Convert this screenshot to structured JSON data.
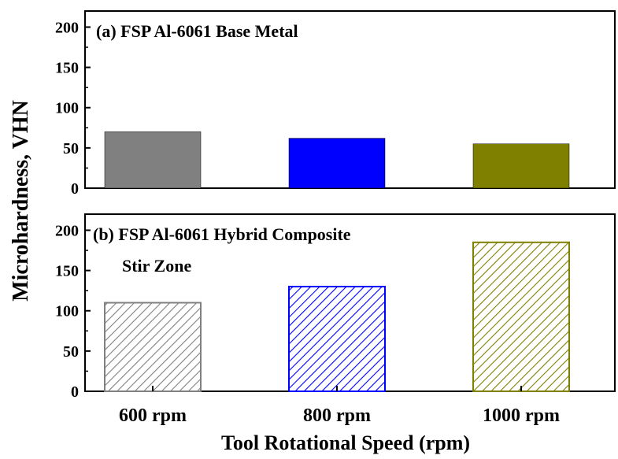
{
  "ylabel": "Microhardness, VHN",
  "xlabel": "Tool Rotational Speed (rpm)",
  "chart_data": [
    {
      "type": "bar",
      "title": "(a) FSP Al-6061 Base Metal",
      "subtitle": "",
      "categories": [
        "600 rpm",
        "800 rpm",
        "1000 rpm"
      ],
      "values": [
        70,
        62,
        55
      ],
      "colors": [
        "#808080",
        "#0000ff",
        "#808000"
      ],
      "fill": "solid",
      "ylim": [
        0,
        220
      ],
      "yticks": [
        0,
        50,
        100,
        150,
        200
      ],
      "grid": false
    },
    {
      "type": "bar",
      "title": "(b) FSP Al-6061 Hybrid Composite",
      "subtitle": "Stir Zone",
      "categories": [
        "600 rpm",
        "800 rpm",
        "1000 rpm"
      ],
      "values": [
        110,
        130,
        185
      ],
      "colors": [
        "#808080",
        "#0000ff",
        "#808000"
      ],
      "fill": "hatched",
      "ylim": [
        0,
        220
      ],
      "yticks": [
        0,
        50,
        100,
        150,
        200
      ],
      "grid": false
    }
  ]
}
